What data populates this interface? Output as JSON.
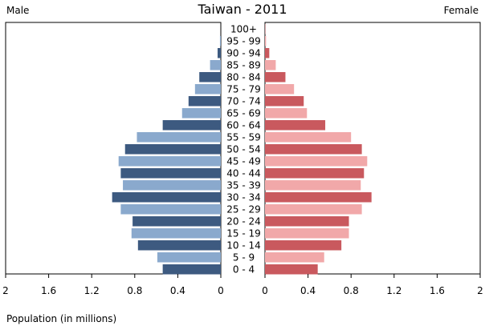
{
  "chart_data": {
    "type": "bar",
    "title": "Taiwan - 2011",
    "left_label": "Male",
    "right_label": "Female",
    "xlabel": "Population (in millions)",
    "xlim": [
      0,
      2
    ],
    "x_ticks_left": [
      "2",
      "1.6",
      "1.2",
      "0.8",
      "0.4",
      "0"
    ],
    "x_ticks_right": [
      "0",
      "0.4",
      "0.8",
      "1.2",
      "1.6",
      "2"
    ],
    "categories": [
      "100+",
      "95 - 99",
      "90 - 94",
      "85 - 89",
      "80 - 84",
      "75 - 79",
      "70 - 74",
      "65 - 69",
      "60 - 64",
      "55 - 59",
      "50 - 54",
      "45 - 49",
      "40 - 44",
      "35 - 39",
      "30 - 34",
      "25 - 29",
      "20 - 24",
      "15 - 19",
      "10 - 14",
      "5 - 9",
      "0 - 4"
    ],
    "series": [
      {
        "name": "Male",
        "values": [
          0.002,
          0.008,
          0.03,
          0.1,
          0.2,
          0.24,
          0.3,
          0.36,
          0.54,
          0.78,
          0.89,
          0.95,
          0.93,
          0.91,
          1.01,
          0.93,
          0.82,
          0.83,
          0.77,
          0.59,
          0.54
        ]
      },
      {
        "name": "Female",
        "values": [
          0.003,
          0.01,
          0.04,
          0.1,
          0.19,
          0.27,
          0.36,
          0.39,
          0.56,
          0.8,
          0.9,
          0.95,
          0.92,
          0.89,
          0.99,
          0.9,
          0.78,
          0.78,
          0.71,
          0.55,
          0.49
        ]
      }
    ],
    "colors": {
      "male_dark": "#3d5a80",
      "male_light": "#8aa9cd",
      "female_dark": "#c9595e",
      "female_light": "#f1a8a9",
      "axis": "#000000"
    },
    "grid": false,
    "legend": "none"
  }
}
